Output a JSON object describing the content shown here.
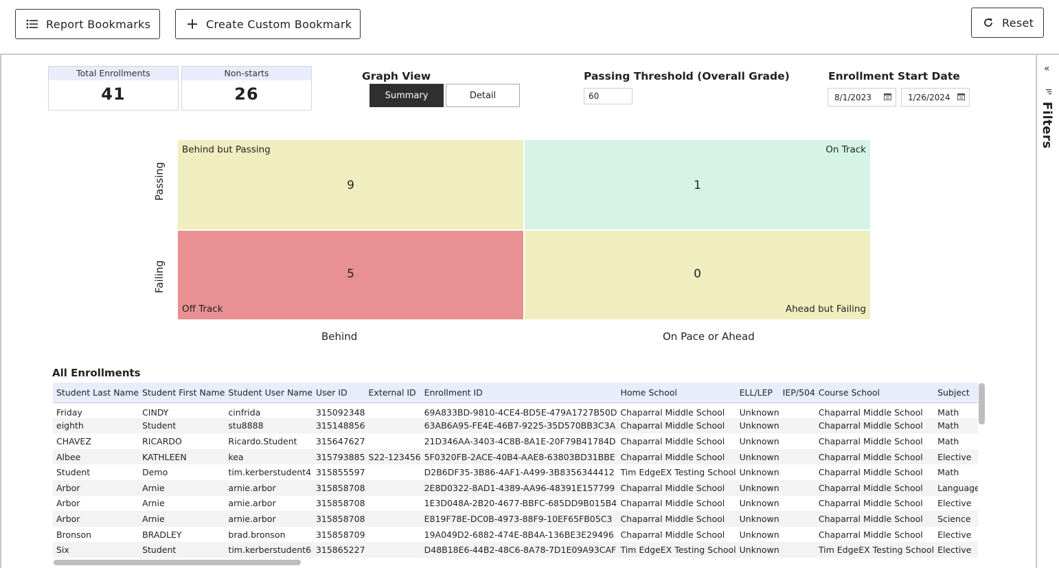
{
  "toolbar": {
    "bookmarks_label": "Report Bookmarks",
    "custom_label": "Create Custom Bookmark",
    "reset_label": "Reset"
  },
  "kpis": {
    "total_label": "Total Enrollments",
    "total_value": "41",
    "nonstarts_label": "Non-starts",
    "nonstarts_value": "26"
  },
  "graph_view": {
    "label": "Graph View",
    "options": [
      "Summary",
      "Detail"
    ],
    "selected": "Summary"
  },
  "threshold": {
    "label": "Passing Threshold (Overall Grade)",
    "value": "60"
  },
  "enrollment_date": {
    "label": "Enrollment Start Date",
    "start": "8/1/2023",
    "end": "1/26/2024"
  },
  "filters_panel": {
    "label": "Filters"
  },
  "chart_data": {
    "type": "quadrant",
    "y_categories": [
      "Passing",
      "Failing"
    ],
    "x_categories": [
      "Behind",
      "On Pace or Ahead"
    ],
    "cells": [
      {
        "name": "Behind but Passing",
        "x": "Behind",
        "y": "Passing",
        "value": 9,
        "color": "#f0eebf"
      },
      {
        "name": "On Track",
        "x": "On Pace or Ahead",
        "y": "Passing",
        "value": 1,
        "color": "#d5f3e6"
      },
      {
        "name": "Off Track",
        "x": "Behind",
        "y": "Failing",
        "value": 5,
        "color": "#e89092"
      },
      {
        "name": "Ahead but Failing",
        "x": "On Pace or Ahead",
        "y": "Failing",
        "value": 0,
        "color": "#f0eebf"
      }
    ]
  },
  "table": {
    "title": "All Enrollments",
    "columns": [
      "Student Last Name",
      "Student First Name",
      "Student User Name",
      "User ID",
      "External ID",
      "Enrollment ID",
      "Home School",
      "ELL/LEP",
      "IEP/504",
      "Course School",
      "Subject"
    ],
    "rows": [
      [
        "Friday",
        "CINDY",
        "cinfrida",
        "315092348",
        "",
        "69A833BD-9810-4CE4-BD5E-479A1727B50D",
        "Chaparral Middle School",
        "Unknown",
        "",
        "Chaparral Middle School",
        "Math"
      ],
      [
        "eighth",
        "Student",
        "stu8888",
        "315148856",
        "",
        "63AB6A95-FE4E-46B7-9225-35D570BB3C3A",
        "Chaparral Middle School",
        "Unknown",
        "",
        "Chaparral Middle School",
        "Math"
      ],
      [
        "CHAVEZ",
        "RICARDO",
        "Ricardo.Student",
        "315647627",
        "",
        "21D346AA-3403-4C8B-8A1E-20F79B41784D",
        "Chaparral Middle School",
        "Unknown",
        "",
        "Chaparral Middle School",
        "Math"
      ],
      [
        "Albee",
        "KATHLEEN",
        "kea",
        "315793885",
        "S22-123456",
        "5F0320FB-2ACE-40B4-AAE8-63803BD31BBE",
        "Chaparral Middle School",
        "Unknown",
        "",
        "Chaparral Middle School",
        "Elective"
      ],
      [
        "Student",
        "Demo",
        "tim.kerberstudent4",
        "315855597",
        "",
        "D2B6DF35-3B86-4AF1-A499-3B8356344412",
        "Tim EdgeEX Testing School",
        "Unknown",
        "",
        "Chaparral Middle School",
        "Math"
      ],
      [
        "Arbor",
        "Arnie",
        "arnie.arbor",
        "315858708",
        "",
        "2E8D0322-8AD1-4389-AA96-48391E157799",
        "Chaparral Middle School",
        "Unknown",
        "",
        "Chaparral Middle School",
        "Language"
      ],
      [
        "Arbor",
        "Arnie",
        "arnie.arbor",
        "315858708",
        "",
        "1E3D048A-2B20-4677-BBFC-685DD9B015B4",
        "Chaparral Middle School",
        "Unknown",
        "",
        "Chaparral Middle School",
        "Elective"
      ],
      [
        "Arbor",
        "Arnie",
        "arnie.arbor",
        "315858708",
        "",
        "E819F78E-DC0B-4973-88F9-10EF65FB05C3",
        "Chaparral Middle School",
        "Unknown",
        "",
        "Chaparral Middle School",
        "Science"
      ],
      [
        "Bronson",
        "BRADLEY",
        "brad.bronson",
        "315858709",
        "",
        "19A049D2-6882-474E-8B4A-136BE3E29496",
        "Chaparral Middle School",
        "Unknown",
        "",
        "Chaparral Middle School",
        "Elective"
      ],
      [
        "Six",
        "Student",
        "tim.kerberstudent6",
        "315865227",
        "",
        "D48B18E6-44B2-48C6-8A78-7D1E09A93CAF",
        "Tim EdgeEX Testing School",
        "Unknown",
        "",
        "Tim EdgeEX Testing School",
        "Elective"
      ]
    ]
  }
}
